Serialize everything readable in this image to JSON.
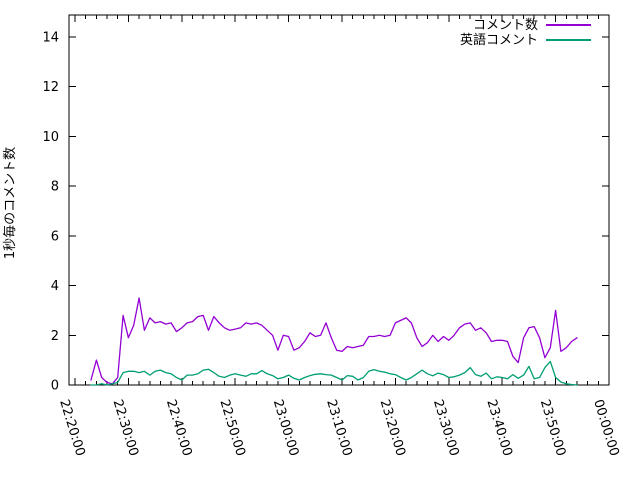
{
  "chart_data": {
    "type": "line",
    "title": "",
    "xlabel": "",
    "ylabel": "1秒毎のコメント数",
    "ylim": [
      0,
      14.9
    ],
    "y_ticks": [
      0,
      2,
      4,
      6,
      8,
      10,
      12,
      14
    ],
    "x_tick_labels": [
      "22:20:00",
      "22:30:00",
      "22:40:00",
      "22:50:00",
      "23:00:00",
      "23:10:00",
      "23:20:00",
      "23:30:00",
      "23:40:00",
      "23:50:00",
      "00:00:00"
    ],
    "x_minor_tick_interval_minutes": 2,
    "xlim": [
      "22:18:50",
      "00:00:00"
    ],
    "grid": false,
    "legend_position": "inside top-right",
    "x": [
      "22:23",
      "22:24",
      "22:25",
      "22:26",
      "22:27",
      "22:28",
      "22:29",
      "22:30",
      "22:31",
      "22:32",
      "22:33",
      "22:34",
      "22:35",
      "22:36",
      "22:37",
      "22:38",
      "22:39",
      "22:40",
      "22:41",
      "22:42",
      "22:43",
      "22:44",
      "22:45",
      "22:46",
      "22:47",
      "22:48",
      "22:49",
      "22:50",
      "22:51",
      "22:52",
      "22:53",
      "22:54",
      "22:55",
      "22:56",
      "22:57",
      "22:58",
      "22:59",
      "23:00",
      "23:01",
      "23:02",
      "23:03",
      "23:04",
      "23:05",
      "23:06",
      "23:07",
      "23:08",
      "23:09",
      "23:10",
      "23:11",
      "23:12",
      "23:13",
      "23:14",
      "23:15",
      "23:16",
      "23:17",
      "23:18",
      "23:19",
      "23:20",
      "23:21",
      "23:22",
      "23:23",
      "23:24",
      "23:25",
      "23:26",
      "23:27",
      "23:28",
      "23:29",
      "23:30",
      "23:31",
      "23:32",
      "23:33",
      "23:34",
      "23:35",
      "23:36",
      "23:37",
      "23:38",
      "23:39",
      "23:40",
      "23:41",
      "23:42",
      "23:43",
      "23:44",
      "23:45",
      "23:46",
      "23:47",
      "23:48",
      "23:49",
      "23:50",
      "23:51",
      "23:52",
      "23:53",
      "23:54"
    ],
    "series": [
      {
        "name": "コメント数",
        "color": "#9400D3",
        "values": [
          0.2,
          1.0,
          0.3,
          0.1,
          0.05,
          0.3,
          2.8,
          1.9,
          2.4,
          3.5,
          2.2,
          2.7,
          2.5,
          2.55,
          2.45,
          2.5,
          2.15,
          2.3,
          2.5,
          2.55,
          2.75,
          2.8,
          2.2,
          2.75,
          2.5,
          2.3,
          2.2,
          2.25,
          2.3,
          2.5,
          2.45,
          2.5,
          2.4,
          2.2,
          2.0,
          1.4,
          2.0,
          1.95,
          1.4,
          1.5,
          1.75,
          2.1,
          1.95,
          2.0,
          2.5,
          1.9,
          1.4,
          1.35,
          1.55,
          1.5,
          1.55,
          1.6,
          1.95,
          1.95,
          2.0,
          1.95,
          2.0,
          2.5,
          2.6,
          2.7,
          2.5,
          1.9,
          1.55,
          1.7,
          2.0,
          1.75,
          1.95,
          1.8,
          2.0,
          2.3,
          2.45,
          2.5,
          2.2,
          2.3,
          2.1,
          1.75,
          1.8,
          1.8,
          1.75,
          1.15,
          0.9,
          1.9,
          2.3,
          2.35,
          1.9,
          1.1,
          1.5,
          3.0,
          1.35,
          1.5,
          1.75,
          1.9
        ]
      },
      {
        "name": "英語コメント",
        "color": "#009E73",
        "values": [
          0,
          0,
          0.05,
          0,
          0.05,
          0.1,
          0.5,
          0.55,
          0.55,
          0.5,
          0.55,
          0.4,
          0.55,
          0.6,
          0.5,
          0.45,
          0.3,
          0.2,
          0.4,
          0.4,
          0.45,
          0.6,
          0.63,
          0.5,
          0.35,
          0.3,
          0.4,
          0.45,
          0.4,
          0.35,
          0.45,
          0.45,
          0.58,
          0.45,
          0.38,
          0.25,
          0.3,
          0.4,
          0.27,
          0.2,
          0.3,
          0.38,
          0.43,
          0.45,
          0.42,
          0.4,
          0.3,
          0.2,
          0.38,
          0.35,
          0.2,
          0.3,
          0.55,
          0.62,
          0.55,
          0.52,
          0.45,
          0.42,
          0.3,
          0.2,
          0.3,
          0.45,
          0.6,
          0.45,
          0.37,
          0.48,
          0.42,
          0.3,
          0.33,
          0.4,
          0.5,
          0.7,
          0.42,
          0.35,
          0.48,
          0.25,
          0.33,
          0.3,
          0.25,
          0.42,
          0.27,
          0.4,
          0.75,
          0.25,
          0.3,
          0.7,
          0.95,
          0.3,
          0.12,
          0.05,
          0.02,
          0
        ]
      }
    ]
  }
}
